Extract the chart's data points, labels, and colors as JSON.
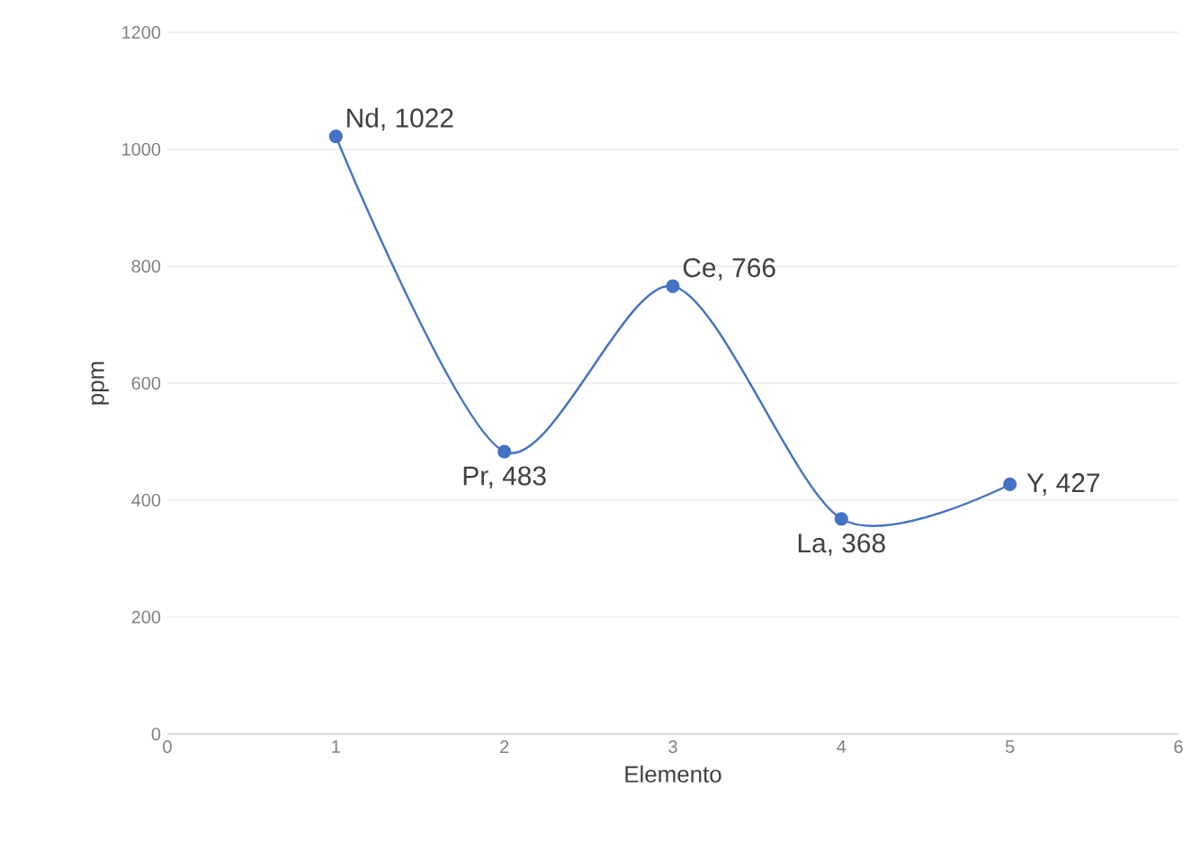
{
  "chart_data": {
    "type": "line",
    "xlabel": "Elemento",
    "ylabel": "ppm",
    "x": [
      1,
      2,
      3,
      4,
      5
    ],
    "series": [
      {
        "color": "#4472c4",
        "values": [
          1022,
          483,
          766,
          368,
          427
        ],
        "value_labels": [
          "Nd, 1022",
          "Pr, 483",
          "Ce, 766",
          "La, 368",
          "Y, 427"
        ]
      }
    ],
    "xlim": [
      0,
      6
    ],
    "xticks": [
      0,
      1,
      2,
      3,
      4,
      5,
      6
    ],
    "ylim": [
      0,
      1200
    ],
    "yticks": [
      0,
      200,
      400,
      600,
      800,
      1000,
      1200
    ],
    "grid": "y",
    "marker": "circle",
    "line_style": "solid"
  }
}
